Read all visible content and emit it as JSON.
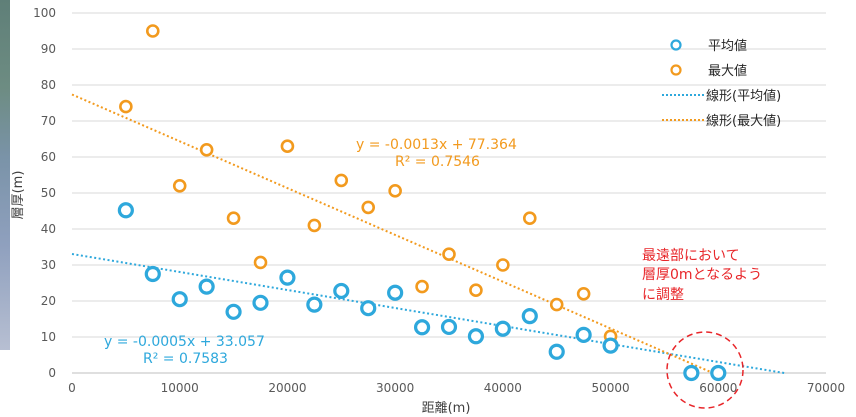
{
  "chart_data": {
    "type": "scatter",
    "title": "",
    "xlabel": "距離(m)",
    "ylabel": "層厚(m)",
    "xlim": [
      0,
      70000
    ],
    "ylim": [
      0,
      100
    ],
    "x_ticks": [
      "0",
      "10000",
      "20000",
      "30000",
      "40000",
      "50000",
      "60000",
      "70000"
    ],
    "y_ticks": [
      "0",
      "10",
      "20",
      "30",
      "40",
      "50",
      "60",
      "70",
      "80",
      "90",
      "100"
    ],
    "grid": "horizontal",
    "legend_position": "top-right",
    "series": [
      {
        "name": "平均値",
        "color": "#2ea8dc",
        "points": [
          [
            5000,
            45.2
          ],
          [
            7500,
            27.5
          ],
          [
            10000,
            20.5
          ],
          [
            12500,
            24
          ],
          [
            15000,
            17
          ],
          [
            17500,
            19.5
          ],
          [
            20000,
            26.5
          ],
          [
            22500,
            19
          ],
          [
            25000,
            22.8
          ],
          [
            27500,
            18
          ],
          [
            30000,
            22.3
          ],
          [
            32500,
            12.7
          ],
          [
            35000,
            12.8
          ],
          [
            37500,
            10.2
          ],
          [
            40000,
            12.3
          ],
          [
            42500,
            15.8
          ],
          [
            45000,
            5.9
          ],
          [
            47500,
            10.6
          ],
          [
            50000,
            7.6
          ],
          [
            57500,
            0
          ],
          [
            60000,
            0
          ]
        ]
      },
      {
        "name": "最大値",
        "color": "#f29a1e",
        "points": [
          [
            5000,
            74
          ],
          [
            7500,
            95
          ],
          [
            10000,
            52
          ],
          [
            12500,
            62
          ],
          [
            15000,
            43
          ],
          [
            17500,
            30.7
          ],
          [
            20000,
            63
          ],
          [
            22500,
            41
          ],
          [
            25000,
            53.5
          ],
          [
            27500,
            46
          ],
          [
            30000,
            50.6
          ],
          [
            32500,
            24
          ],
          [
            35000,
            33
          ],
          [
            37500,
            23
          ],
          [
            40000,
            30
          ],
          [
            42500,
            43
          ],
          [
            45000,
            19
          ],
          [
            47500,
            22
          ],
          [
            50000,
            10.2
          ],
          [
            57500,
            0
          ],
          [
            60000,
            0
          ]
        ]
      }
    ],
    "trendlines": [
      {
        "name": "線形(平均値)",
        "color": "#2ea8dc",
        "slope": -0.0005,
        "intercept": 33.057,
        "equation": "y = -0.0005x + 33.057",
        "r2": "R² = 0.7583"
      },
      {
        "name": "線形(最大値)",
        "color": "#f29a1e",
        "slope": -0.0013,
        "intercept": 77.364,
        "equation": "y = -0.0013x + 77.364",
        "r2": "R² = 0.7546"
      }
    ],
    "annotation": {
      "lines": [
        "最遠部において",
        "層厚0mとなるよう",
        "に調整"
      ],
      "color": "#e8262a"
    }
  }
}
